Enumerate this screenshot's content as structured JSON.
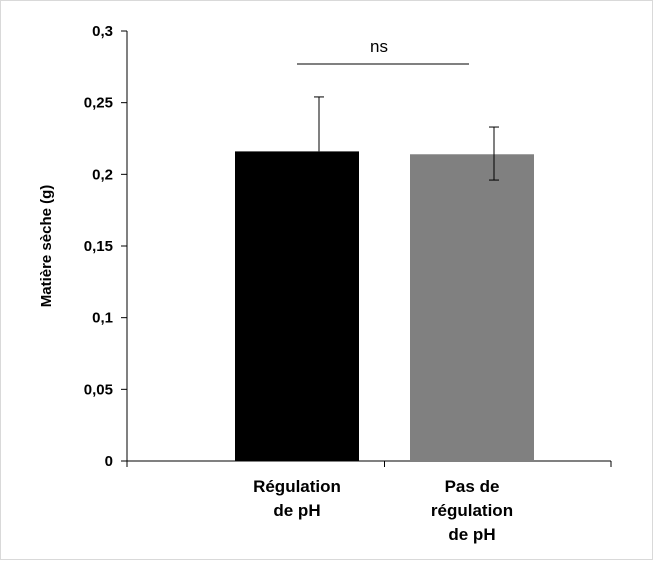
{
  "chart_data": {
    "type": "bar",
    "ylabel": "Matière sèche (g)",
    "xlabel": "",
    "ylim": [
      0,
      0.3
    ],
    "yticks": [
      "0",
      "0,05",
      "0,1",
      "0,15",
      "0,2",
      "0,25",
      "0,3"
    ],
    "ytick_values": [
      0,
      0.05,
      0.1,
      0.15,
      0.2,
      0.25,
      0.3
    ],
    "categories": [
      [
        "Régulation",
        "de pH"
      ],
      [
        "Pas de",
        "régulation",
        "de pH"
      ]
    ],
    "values": [
      0.216,
      0.214
    ],
    "error_upper": [
      0.254,
      0.233
    ],
    "error_lower": [
      0.216,
      0.196
    ],
    "bar_colors": [
      "#000000",
      "#808080"
    ],
    "annotation": "ns",
    "grid": false,
    "legend": "none"
  }
}
